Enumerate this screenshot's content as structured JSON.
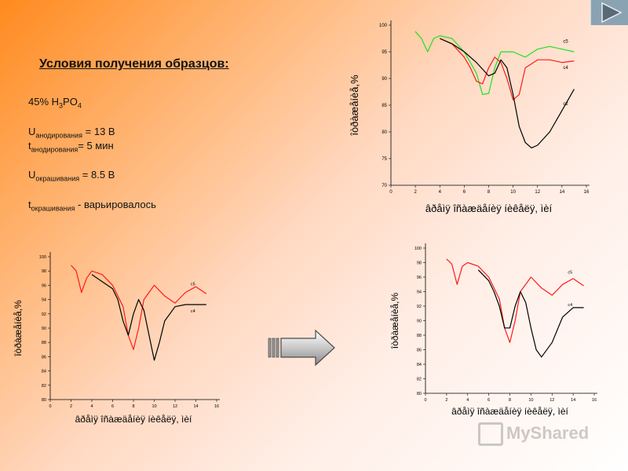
{
  "slide": {
    "heading": "Условия получения образцов:",
    "conditions": {
      "acid_text": "45% H",
      "acid_sub1": "3",
      "acid_mid": "PO",
      "acid_sub2": "4",
      "u_anod_main": "U",
      "u_anod_sub": "анодирования",
      "u_anod_val": " = 13 В",
      "t_anod_main": "t",
      "t_anod_sub": "анодирования",
      "t_anod_val": "= 5 мин",
      "u_okr_main": "U",
      "u_okr_sub": "окрашивания",
      "u_okr_val": " = 8.5 В",
      "t_okr_main": "t",
      "t_okr_sub": "окрашивания",
      "t_okr_val": "  - варьировалось"
    },
    "watermark": "MyShared",
    "colors": {
      "red": "#ff1a1a",
      "green": "#22e022",
      "black": "#000000",
      "nav": "#8aa3b3"
    }
  },
  "chart_data": [
    {
      "type": "line",
      "xlabel": "âðåìÿ îñàæäåíèÿ íèêåëÿ, ìèí",
      "ylabel": "îòðàæåíèå,%",
      "xlim": [
        0,
        16
      ],
      "ylim": [
        70,
        100
      ],
      "xticks": [
        0,
        2,
        4,
        6,
        8,
        10,
        12,
        14,
        16
      ],
      "yticks": [
        70,
        75,
        80,
        85,
        90,
        95,
        100
      ],
      "series": [
        {
          "name": "c5",
          "color": "#22e022",
          "label_at": [
            14.1,
            96.7
          ],
          "x": [
            2,
            2.5,
            3,
            3.5,
            4,
            5,
            6,
            7,
            7.5,
            8,
            8.5,
            9,
            10,
            11,
            12,
            13,
            14,
            15
          ],
          "y": [
            98.8,
            97.5,
            95,
            97.5,
            98,
            97.5,
            95,
            91,
            87,
            87.2,
            92,
            95,
            95,
            94,
            95.5,
            96,
            95.5,
            95
          ]
        },
        {
          "name": "c4",
          "color": "#ff1a1a",
          "label_at": [
            14.1,
            91.8
          ],
          "x": [
            4,
            5,
            6,
            6.5,
            7,
            7.5,
            8,
            8.5,
            9,
            9.5,
            10,
            10.5,
            11,
            12,
            13,
            14,
            15
          ],
          "y": [
            97.5,
            96.5,
            94,
            92,
            89.5,
            89,
            92,
            94,
            93,
            90,
            86,
            87,
            92,
            93.5,
            93.5,
            93,
            93.3
          ]
        },
        {
          "name": "c2",
          "color": "#000000",
          "label_at": [
            14.1,
            85
          ],
          "x": [
            4,
            5,
            6,
            7,
            8,
            8.5,
            9,
            9.5,
            10,
            10.5,
            11,
            11.5,
            12,
            13,
            14,
            15
          ],
          "y": [
            97.5,
            96.5,
            95,
            93,
            90.5,
            91,
            93.5,
            92,
            87,
            81,
            78,
            77,
            77.5,
            80,
            84,
            88
          ]
        }
      ]
    },
    {
      "type": "line",
      "xlabel": "âðåìÿ îñàæäåíèÿ íèêåëÿ, ìèí",
      "ylabel": "îòðàæåíèå,%",
      "xlim": [
        0,
        16
      ],
      "ylim": [
        80,
        100
      ],
      "xticks": [
        0,
        2,
        4,
        6,
        8,
        10,
        12,
        14,
        16
      ],
      "yticks": [
        80,
        82,
        84,
        86,
        88,
        90,
        92,
        94,
        96,
        98,
        100
      ],
      "series": [
        {
          "name": "c5",
          "color": "#ff1a1a",
          "label_at": [
            13.5,
            96
          ],
          "x": [
            2,
            2.5,
            3,
            3.5,
            4,
            5,
            6,
            7,
            7.5,
            8,
            8.5,
            9,
            10,
            11,
            12,
            13,
            14,
            15
          ],
          "y": [
            98.8,
            98,
            95,
            97,
            98,
            97.5,
            96,
            93,
            89,
            87,
            90,
            94,
            96,
            94.5,
            93.5,
            95,
            95.8,
            94.8
          ]
        },
        {
          "name": "c4",
          "color": "#000000",
          "label_at": [
            13.5,
            92.2
          ],
          "x": [
            4,
            5,
            6,
            6.5,
            7,
            7.5,
            8,
            8.5,
            9,
            9.5,
            10,
            10.5,
            11,
            12,
            13,
            14,
            15
          ],
          "y": [
            97.5,
            96.5,
            95.5,
            94,
            91,
            89,
            92,
            94,
            92.5,
            89,
            85.5,
            88,
            91,
            93,
            93.3,
            93.3,
            93.3
          ]
        }
      ]
    },
    {
      "type": "line",
      "xlabel": "âðåìÿ îñàæäåíèÿ íèêåëÿ, ìèí",
      "ylabel": "îòðàæåíèå,%",
      "xlim": [
        0,
        16
      ],
      "ylim": [
        80,
        100
      ],
      "xticks": [
        0,
        2,
        4,
        6,
        8,
        10,
        12,
        14,
        16
      ],
      "yticks": [
        80,
        82,
        84,
        86,
        88,
        90,
        92,
        94,
        96,
        98,
        100
      ],
      "series": [
        {
          "name": "c5",
          "color": "#ff1a1a",
          "label_at": [
            13.5,
            96.5
          ],
          "x": [
            2,
            2.5,
            3,
            3.5,
            4,
            5,
            6,
            7,
            7.5,
            8,
            8.5,
            9,
            10,
            11,
            12,
            13,
            14,
            15
          ],
          "y": [
            98.5,
            97.8,
            95,
            97.5,
            98,
            97.5,
            96,
            93,
            89,
            87,
            90,
            94,
            96,
            94.5,
            93.5,
            95,
            95.8,
            94.8
          ]
        },
        {
          "name": "c4",
          "color": "#000000",
          "label_at": [
            13.5,
            92
          ],
          "x": [
            5,
            6,
            6.5,
            7,
            7.5,
            8,
            8.5,
            9,
            9.5,
            10,
            10.5,
            11,
            12,
            13,
            14,
            15
          ],
          "y": [
            97,
            95.5,
            94,
            92,
            89,
            89,
            92,
            94,
            92.5,
            89,
            86,
            85,
            87,
            90.5,
            91.8,
            91.8
          ]
        }
      ]
    }
  ]
}
